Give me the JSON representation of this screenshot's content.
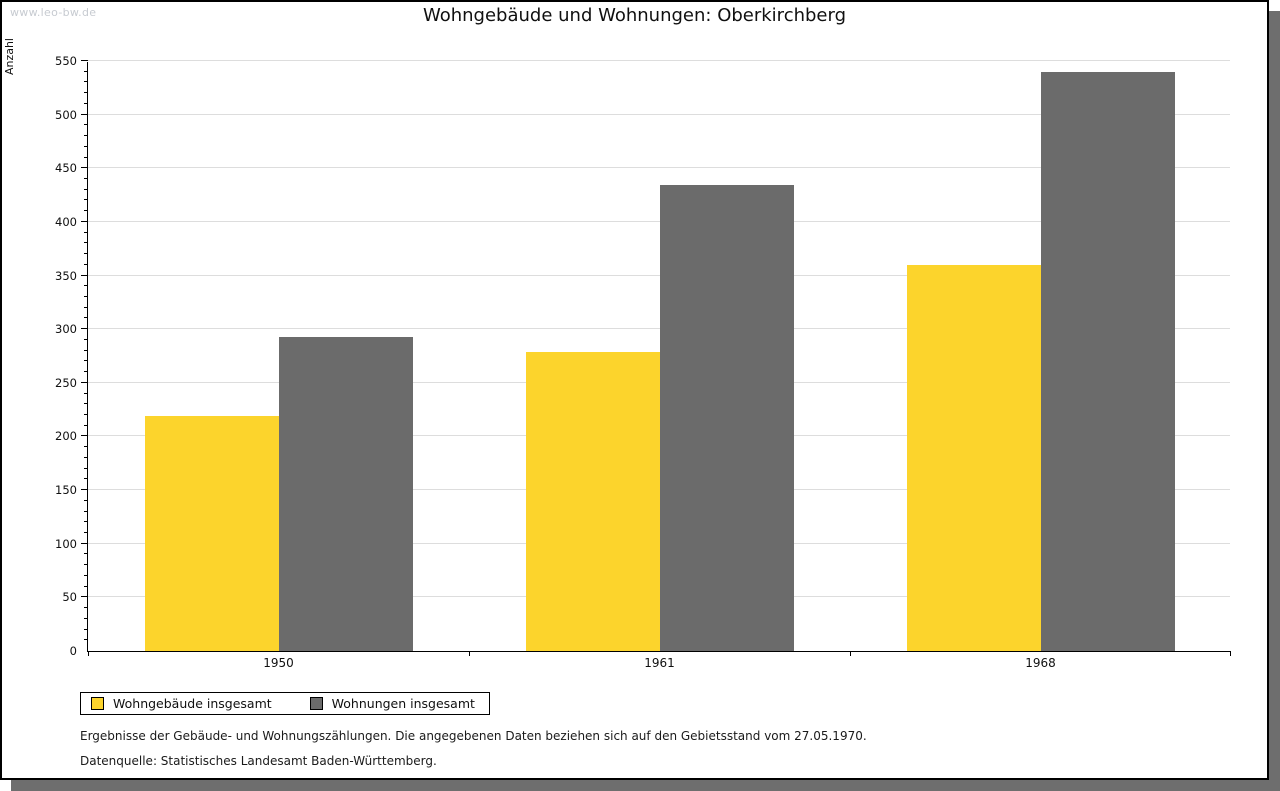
{
  "page": {
    "watermark": "www.leo-bw.de",
    "title": "Wohngebäude und Wohnungen: Oberkirchberg",
    "footnote1": "Ergebnisse der Gebäude- und Wohnungszählungen. Die angegebenen Daten beziehen sich auf den Gebietsstand vom 27.05.1970.",
    "footnote2": "Datenquelle: Statistisches Landesamt Baden-Württemberg."
  },
  "chart_data": {
    "type": "bar",
    "title": "Wohngebäude und Wohnungen: Oberkirchberg",
    "categories": [
      "1950",
      "1961",
      "1968"
    ],
    "series": [
      {
        "name": "Wohngebäude insgesamt",
        "color": "#FCD42C",
        "values": [
          219,
          279,
          360
        ]
      },
      {
        "name": "Wohnungen insgesamt",
        "color": "#6B6B6B",
        "values": [
          293,
          434,
          540
        ]
      }
    ],
    "xlabel": "",
    "ylabel": "Anzahl",
    "ylim": [
      0,
      550
    ],
    "ytick_step": 50,
    "minor_tick_step": 10,
    "grid": true,
    "gridline_color": "#DDDDDD",
    "legend_position": "bottom-left"
  },
  "colors": {
    "page_border": "#000000",
    "shadow": "#6E6E6E",
    "watermark": "#C7CBD1"
  }
}
